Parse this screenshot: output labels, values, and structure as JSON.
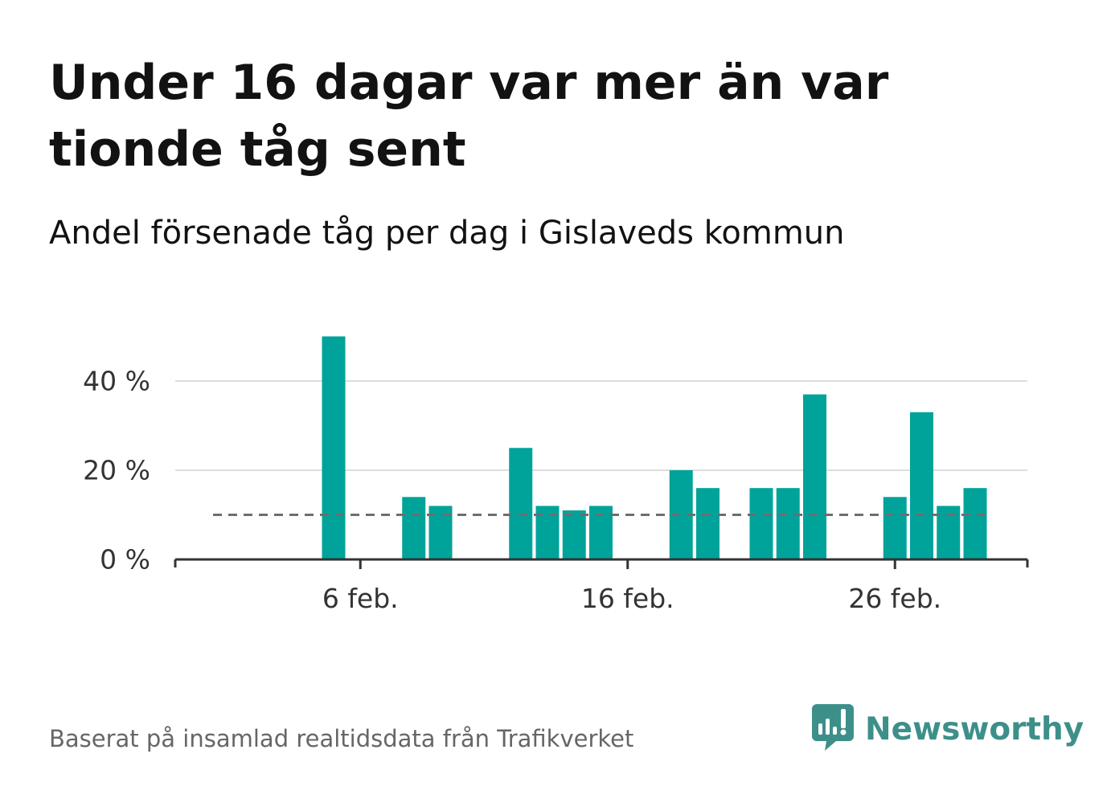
{
  "title": "Under 16 dagar var mer än var tionde tåg sent",
  "subtitle": "Andel försenade tåg per dag i Gislaveds kommun",
  "footer": {
    "source": "Baserat på insamlad realtidsdata från Trafikverket",
    "brand": "Newsworthy",
    "brand_icon": "newsworthy-logo-icon"
  },
  "colors": {
    "bar": "#00a39a",
    "threshold": "#6e6e6e",
    "grid": "#dddddd",
    "axis": "#333333",
    "brand": "#3d8f8a"
  },
  "chart_data": {
    "type": "bar",
    "title": "Under 16 dagar var mer än var tionde tåg sent",
    "subtitle": "Andel försenade tåg per dag i Gislaveds kommun",
    "xlabel": "",
    "ylabel": "",
    "x": [
      "1 feb.",
      "2 feb.",
      "3 feb.",
      "4 feb.",
      "5 feb.",
      "6 feb.",
      "7 feb.",
      "8 feb.",
      "9 feb.",
      "10 feb.",
      "11 feb.",
      "12 feb.",
      "13 feb.",
      "14 feb.",
      "15 feb.",
      "16 feb.",
      "17 feb.",
      "18 feb.",
      "19 feb.",
      "20 feb.",
      "21 feb.",
      "22 feb.",
      "23 feb.",
      "24 feb.",
      "25 feb.",
      "26 feb.",
      "27 feb.",
      "28 feb.",
      "29 feb."
    ],
    "values": [
      0,
      0,
      0,
      0,
      50,
      0,
      0,
      14,
      12,
      0,
      0,
      25,
      12,
      11,
      12,
      0,
      0,
      20,
      16,
      0,
      16,
      16,
      37,
      0,
      0,
      14,
      33,
      12,
      16
    ],
    "xticks": [
      {
        "x": "6 feb.",
        "label": "6 feb."
      },
      {
        "x": "16 feb.",
        "label": "16 feb."
      },
      {
        "x": "26 feb.",
        "label": "26 feb."
      }
    ],
    "yticks": [
      {
        "value": 0,
        "label": "0 %"
      },
      {
        "value": 20,
        "label": "20 %"
      },
      {
        "value": 40,
        "label": "40 %"
      }
    ],
    "ylim": [
      0,
      50
    ],
    "threshold": 10,
    "grid": true,
    "unit": "%"
  }
}
